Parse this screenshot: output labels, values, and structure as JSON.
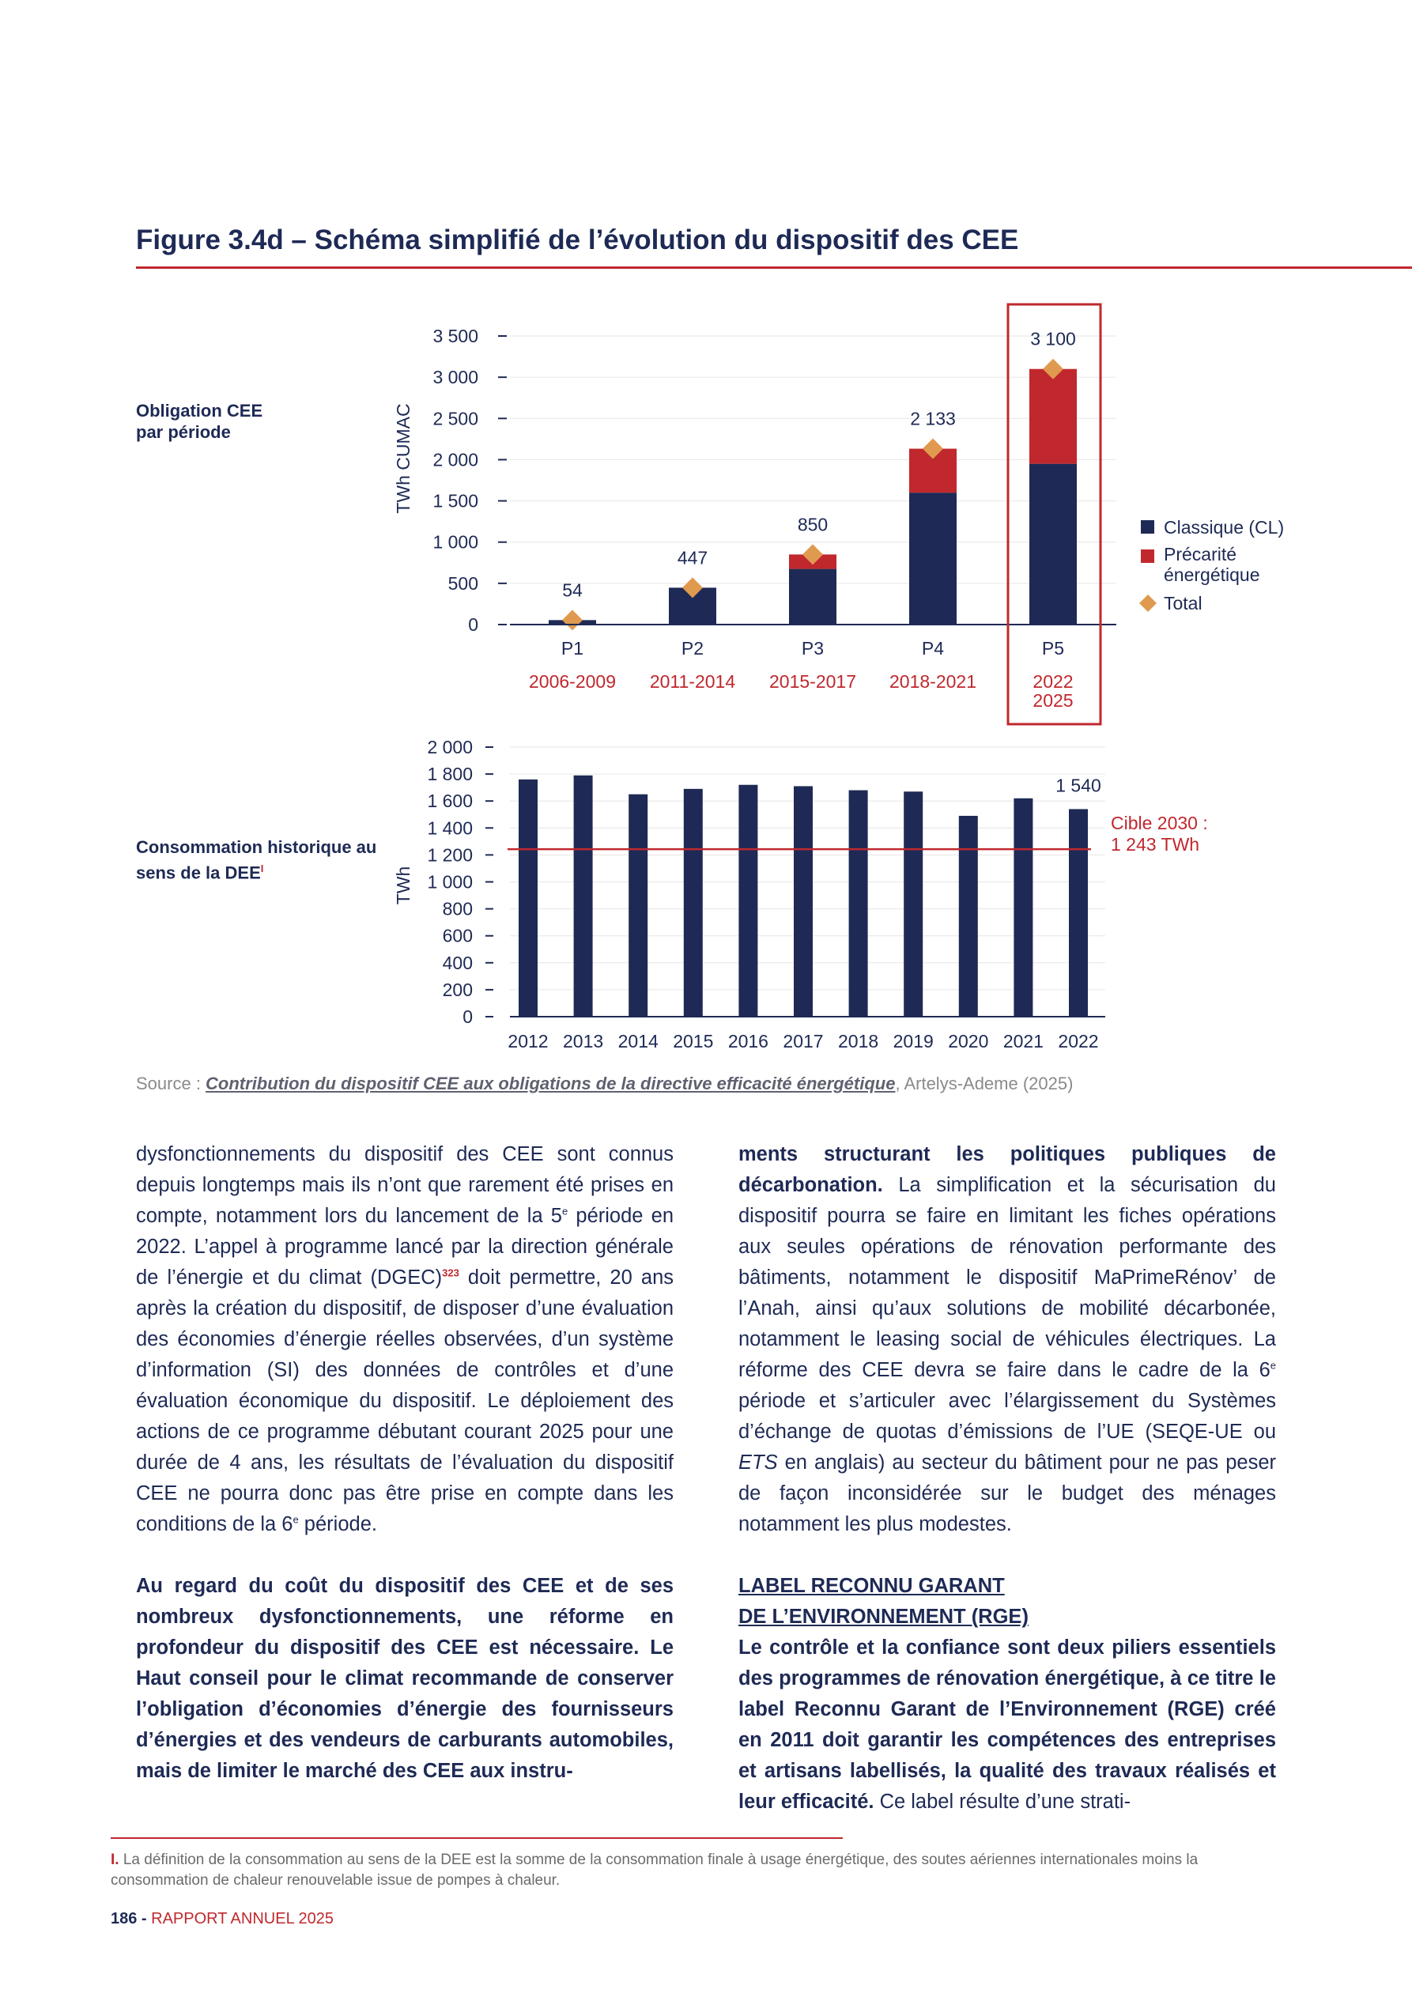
{
  "figure": {
    "title": "Figure 3.4d – Schéma simplifié de l’évolution du dispositif des CEE",
    "label_top": "Obligation CEE par période",
    "label_bottom": "Consommation historique au sens de la DEE",
    "label_bottom_note_mark": "I",
    "source_prefix": "Source : ",
    "source_link": "Contribution du dispositif CEE aux obligations de la directive efficacité énergétique",
    "source_suffix": ", Artelys-Ademe (2025)"
  },
  "chart_data": [
    {
      "type": "bar",
      "stacked": true,
      "ylabel": "TWh CUMAC",
      "ylim": [
        0,
        3500
      ],
      "yticks": [
        "0",
        "500",
        "1 000",
        "1 500",
        "2 000",
        "2 500",
        "3 000",
        "3 500"
      ],
      "ytick_values": [
        0,
        500,
        1000,
        1500,
        2000,
        2500,
        3000,
        3500
      ],
      "categories": [
        "P1",
        "P2",
        "P3",
        "P4",
        "P5"
      ],
      "periods": [
        "2006-2009",
        "2011-2014",
        "2015-2017",
        "2018-2021",
        "2022\n2025"
      ],
      "series": [
        {
          "name": "Classique (CL)",
          "color": "#1e2a55",
          "values": [
            54,
            447,
            675,
            1600,
            1950
          ]
        },
        {
          "name": "Précarité énergétique",
          "color": "#c0282d",
          "values": [
            0,
            0,
            175,
            533,
            1150
          ]
        }
      ],
      "totals": [
        54,
        447,
        850,
        2133,
        3100
      ],
      "total_labels": [
        "54",
        "447",
        "850",
        "2 133",
        "3 100"
      ],
      "total_marker_name": "Total",
      "total_marker_color": "#e09a4f",
      "legend_position": "right",
      "highlight_category": "P5",
      "grid": true
    },
    {
      "type": "bar",
      "ylabel": "TWh",
      "ylim": [
        0,
        2000
      ],
      "yticks": [
        "0",
        "200",
        "400",
        "600",
        "800",
        "1 000",
        "1 200",
        "1 400",
        "1 600",
        "1 800",
        "2 000"
      ],
      "ytick_values": [
        0,
        200,
        400,
        600,
        800,
        1000,
        1200,
        1400,
        1600,
        1800,
        2000
      ],
      "categories": [
        "2012",
        "2013",
        "2014",
        "2015",
        "2016",
        "2017",
        "2018",
        "2019",
        "2020",
        "2021",
        "2022"
      ],
      "values": [
        1760,
        1790,
        1650,
        1690,
        1720,
        1710,
        1680,
        1670,
        1490,
        1620,
        1540
      ],
      "bar_color": "#1e2a55",
      "data_labels": {
        "2022": "1 540"
      },
      "target": {
        "value": 1243,
        "label": "Cible 2030 :",
        "label2": "1 243 TWh",
        "color": "#c0282d"
      },
      "grid": true
    }
  ],
  "body": {
    "left_p1": "dysfonctionnements du dispositif des CEE sont connus depuis longtemps mais ils n’ont que rarement été prises en compte, notamment lors du lancement de la 5",
    "left_p1_sup": "e",
    "left_p1b": " période en 2022. L’appel à programme lancé par la direction générale de l’énergie et du climat (DGEC)",
    "left_p1_ref": "323",
    "left_p1c": " doit permettre, 20 ans après la création du dispositif, de disposer d’une évaluation des économies d’énergie réelles observées, d’un système d’information (SI) des données de contrôles et d’une évaluation économique du dispositif. Le déploiement des actions de ce programme débutant courant 2025 pour une durée de 4 ans, les résultats de l’évaluation du dispositif CEE ne pourra donc pas être prise en compte dans les conditions de la 6",
    "left_p1_sup2": "e",
    "left_p1d": " période.",
    "left_p2_bold": "Au regard du coût du dispositif des CEE et de ses nombreux dysfonctionnements, une réforme en profondeur du dispositif des CEE est nécessaire. Le Haut conseil pour le climat recommande de conserver l’obligation d’économies d’énergie des fournisseurs d’énergies et des vendeurs de carburants automobiles, mais de limiter le marché des CEE aux instru-",
    "right_p1_bold": "ments structurant les politiques publiques de décarbonation.",
    "right_p1a": " La simplification et la sécurisation du dispositif pourra se faire en limitant les fiches opérations aux seules opérations de rénovation performante des bâtiments, notamment le dispositif MaPrimeRénov’ de l’Anah, ainsi qu’aux solutions de mobilité décarbonée, notamment le leasing social de véhicules électriques. La réforme des CEE devra se faire dans le cadre de la 6",
    "right_p1_sup": "e",
    "right_p1b": " période et s’articuler avec l’élargissement du Systèmes d’échange de quotas d’émissions de l’UE (SEQE-UE ou ",
    "right_p1_ets": "ETS",
    "right_p1c": " en anglais) au secteur du bâtiment pour ne pas peser de façon inconsidérée sur le budget des ménages notamment les plus modestes.",
    "rge_heading_1": "LABEL RECONNU GARANT",
    "rge_heading_2": "DE L’ENVIRONNEMENT (RGE)",
    "right_p2_bold": "Le contrôle et la confiance sont deux piliers essentiels des programmes de rénovation énergétique, à ce titre le label Reconnu Garant de l’Environnement (RGE) créé en 2011 doit garantir les compétences des entreprises et artisans labellisés, la qualité des travaux réalisés et leur efficacité.",
    "right_p2_rest": " Ce label résulte d’une strati-"
  },
  "footnote": {
    "mark": "I.",
    "text": " La définition de la consommation au sens de la DEE est la somme de la consommation finale à usage énergétique, des soutes aériennes internationales moins la consommation de chaleur renouvelable issue de pompes à chaleur."
  },
  "footer": {
    "page_number": "186 -",
    "report": " RAPPORT ANNUEL 2025"
  },
  "colors": {
    "navy": "#1e2a55",
    "red": "#c0282d",
    "orange": "#e09a4f"
  }
}
